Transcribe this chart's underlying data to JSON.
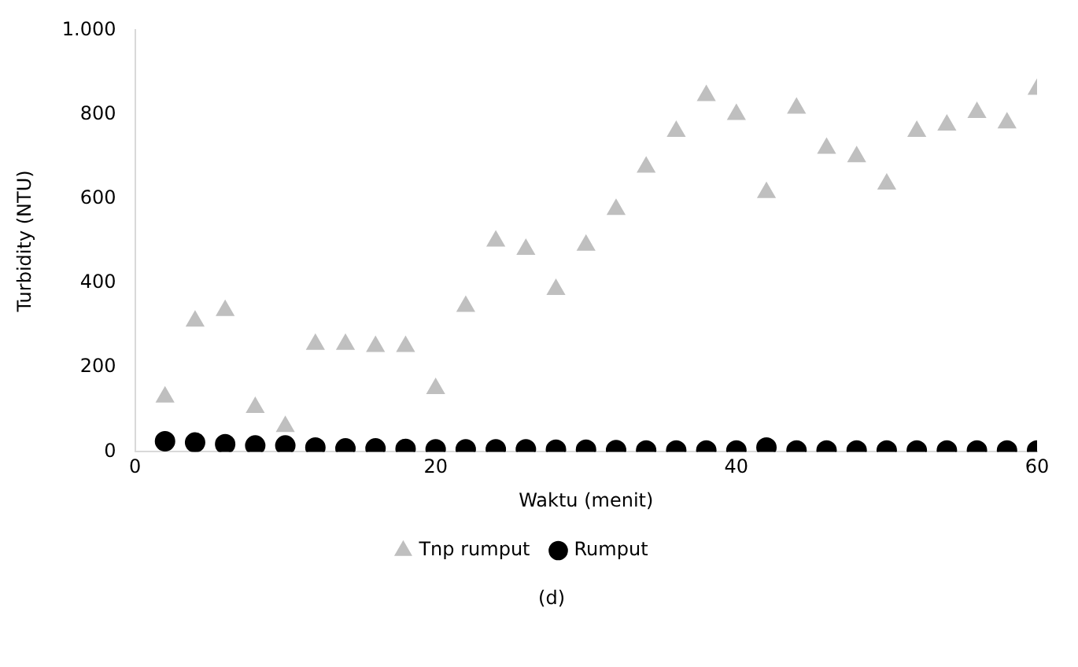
{
  "chart_data": {
    "type": "scatter",
    "xlabel": "Waktu (menit)",
    "ylabel": "Turbidity (NTU)",
    "x": [
      2,
      4,
      6,
      8,
      10,
      12,
      14,
      16,
      18,
      20,
      22,
      24,
      26,
      28,
      30,
      32,
      34,
      36,
      38,
      40,
      42,
      44,
      46,
      48,
      50,
      52,
      54,
      56,
      58,
      60
    ],
    "series": [
      {
        "name": "Tnp rumput",
        "color": "#bfbfbf",
        "marker": "triangle",
        "values": [
          130,
          310,
          335,
          105,
          60,
          255,
          255,
          250,
          250,
          150,
          345,
          500,
          480,
          385,
          490,
          575,
          675,
          760,
          845,
          800,
          615,
          815,
          720,
          700,
          635,
          760,
          775,
          805,
          780,
          860
        ]
      },
      {
        "name": "Rumput",
        "color": "#000000",
        "marker": "circle",
        "values": [
          25,
          22,
          18,
          15,
          15,
          10,
          8,
          8,
          7,
          6,
          6,
          6,
          6,
          5,
          5,
          4,
          3,
          3,
          3,
          3,
          10,
          3,
          3,
          3,
          3,
          3,
          3,
          3,
          3,
          3
        ]
      }
    ],
    "xlim": [
      0,
      60
    ],
    "xticks": [
      0,
      20,
      40,
      60
    ],
    "ylim": [
      0,
      1000
    ],
    "yticks": [
      0,
      200,
      400,
      600,
      800,
      {
        "value": 1000,
        "label": "1.000"
      }
    ],
    "grid": false,
    "legend": "bottom",
    "annotations": [
      "(d)"
    ]
  }
}
